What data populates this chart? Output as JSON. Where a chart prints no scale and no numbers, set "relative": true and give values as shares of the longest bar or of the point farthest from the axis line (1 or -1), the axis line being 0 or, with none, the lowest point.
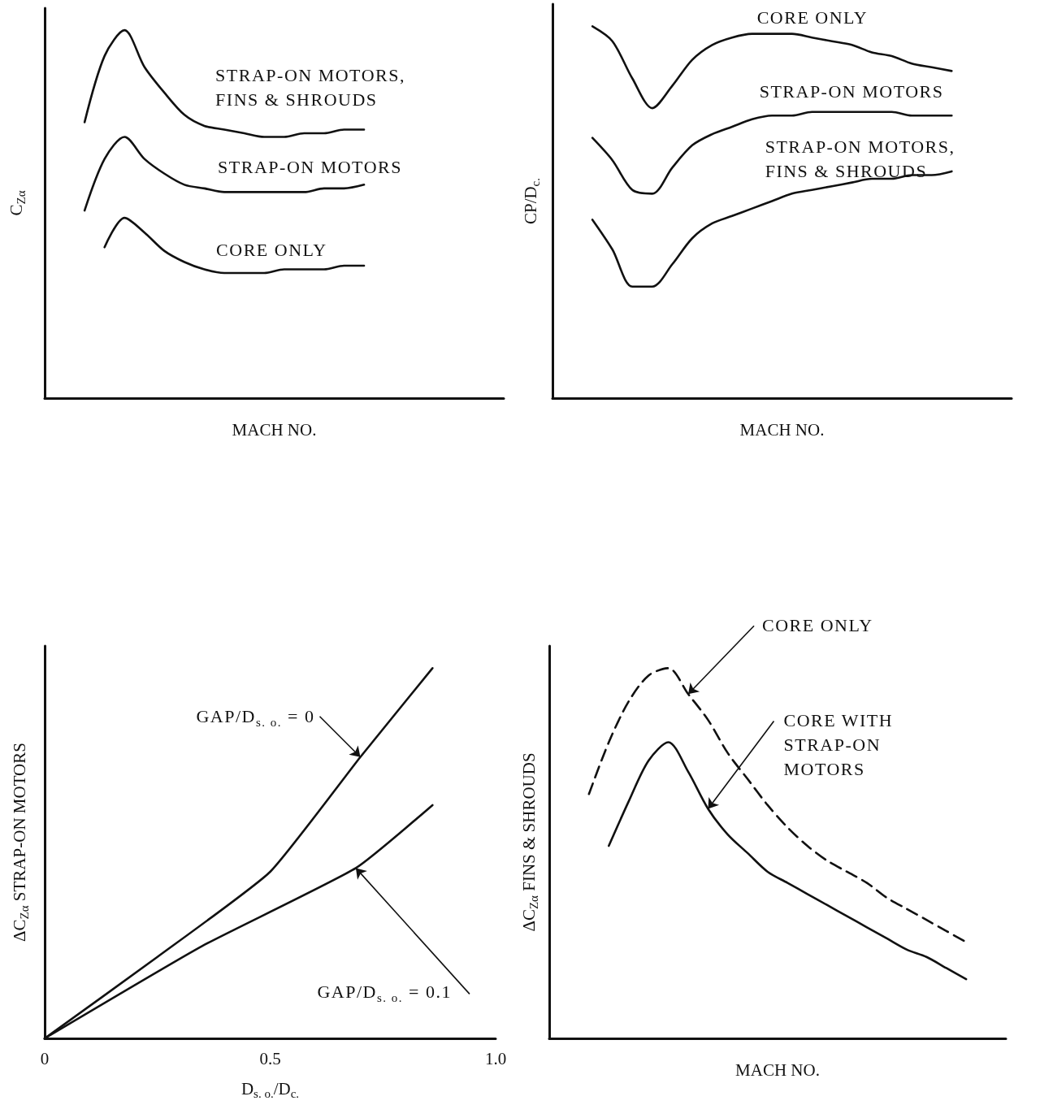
{
  "chart_data": [
    {
      "type": "line",
      "relative": true,
      "xlabel": "MACH NO.",
      "ylabel": "C$_{Zα}$",
      "marker": "none",
      "tick_labels": false,
      "categories": [
        null,
        null,
        null,
        null,
        null,
        null,
        null,
        null,
        null,
        null,
        null,
        null,
        null,
        null,
        null,
        null,
        null,
        null,
        null,
        null,
        null,
        null,
        null,
        null
      ],
      "series": [
        {
          "name": "STRAP-ON MOTORS, FINS & SHROUDS",
          "color": "#111111",
          "values": [
            null,
            null,
            0.75,
            0.93,
            1.0,
            0.9,
            0.83,
            0.77,
            0.74,
            0.73,
            0.72,
            0.71,
            0.71,
            0.72,
            0.72,
            0.73,
            0.73,
            null,
            null,
            null,
            null,
            null,
            null,
            null
          ]
        },
        {
          "name": "STRAP-ON MOTORS",
          "color": "#111111",
          "values": [
            null,
            null,
            0.51,
            0.65,
            0.71,
            0.65,
            0.61,
            0.58,
            0.57,
            0.56,
            0.56,
            0.56,
            0.56,
            0.56,
            0.57,
            0.57,
            0.58,
            null,
            null,
            null,
            null,
            null,
            null,
            null
          ]
        },
        {
          "name": "CORE ONLY",
          "color": "#111111",
          "values": [
            null,
            null,
            null,
            0.41,
            0.49,
            0.45,
            0.4,
            0.37,
            0.35,
            0.34,
            0.34,
            0.34,
            0.35,
            0.35,
            0.35,
            0.36,
            0.36,
            null,
            null,
            null,
            null,
            null,
            null,
            null
          ]
        }
      ]
    },
    {
      "type": "line",
      "relative": true,
      "xlabel": "MACH NO.",
      "ylabel": "CP/D$_{c.}$",
      "marker": "none",
      "tick_labels": false,
      "categories": [
        null,
        null,
        null,
        null,
        null,
        null,
        null,
        null,
        null,
        null,
        null,
        null,
        null,
        null,
        null,
        null,
        null,
        null,
        null,
        null,
        null,
        null,
        null,
        null
      ],
      "series": [
        {
          "name": "CORE ONLY",
          "color": "#111111",
          "values": [
            null,
            null,
            1.0,
            0.96,
            0.86,
            0.78,
            0.84,
            0.91,
            0.95,
            0.97,
            0.98,
            0.98,
            0.98,
            0.97,
            0.96,
            0.95,
            0.93,
            0.92,
            0.9,
            0.89,
            0.88,
            null,
            null,
            null
          ]
        },
        {
          "name": "STRAP-ON MOTORS",
          "color": "#111111",
          "values": [
            null,
            null,
            0.7,
            0.64,
            0.56,
            0.55,
            0.62,
            0.68,
            0.71,
            0.73,
            0.75,
            0.76,
            0.76,
            0.77,
            0.77,
            0.77,
            0.77,
            0.77,
            0.76,
            0.76,
            0.76,
            null,
            null,
            null
          ]
        },
        {
          "name": "STRAP-ON MOTORS, FINS & SHROUDS",
          "color": "#111111",
          "values": [
            null,
            null,
            0.48,
            0.4,
            0.3,
            0.3,
            0.36,
            0.43,
            0.47,
            0.49,
            0.51,
            0.53,
            0.55,
            0.56,
            0.57,
            0.58,
            0.59,
            0.59,
            0.6,
            0.6,
            0.61,
            null,
            null,
            null
          ]
        }
      ]
    },
    {
      "type": "line",
      "relative": true,
      "xlabel": "D$_{s. o.}$/D$_{c.}$",
      "ylabel": "ΔC$_{Zα}$ STRAP-ON MOTORS",
      "marker": "none",
      "tick_labels": "x",
      "xlim": [
        0,
        1
      ],
      "xticks": [
        0,
        0.5,
        {
          "value": 1,
          "label": "1.0"
        }
      ],
      "series": [
        {
          "name": "GAP/D$_{s. o.}$ = 0",
          "color": "#111111",
          "x": [
            0,
            0.25,
            0.5,
            0.7,
            0.86
          ],
          "values": [
            0,
            0.22,
            0.45,
            0.76,
            1.0
          ]
        },
        {
          "name": "GAP/D$_{s. o.}$ = 0.1",
          "color": "#111111",
          "x": [
            0,
            0.35,
            0.69,
            0.86
          ],
          "values": [
            0,
            0.25,
            0.46,
            0.63
          ]
        }
      ]
    },
    {
      "type": "line",
      "relative": true,
      "xlabel": "MACH NO.",
      "ylabel": "ΔC$_{Zα}$ FINS & SHROUDS",
      "marker": "none",
      "tick_labels": false,
      "categories": [
        null,
        null,
        null,
        null,
        null,
        null,
        null,
        null,
        null,
        null,
        null,
        null,
        null,
        null,
        null,
        null,
        null,
        null,
        null,
        null,
        null,
        null,
        null,
        null
      ],
      "series": [
        {
          "name": "CORE ONLY",
          "color": "#111111",
          "line_style": "dashed",
          "values": [
            null,
            null,
            0.66,
            0.8,
            0.91,
            0.98,
            1.0,
            0.93,
            0.86,
            0.77,
            0.7,
            0.63,
            0.57,
            0.52,
            0.48,
            0.45,
            0.42,
            0.38,
            0.35,
            0.32,
            0.29,
            0.26,
            null,
            null
          ]
        },
        {
          "name": "CORE WITH STRAP-ON MOTORS",
          "color": "#111111",
          "line_style": "solid",
          "values": [
            null,
            null,
            null,
            0.52,
            0.64,
            0.75,
            0.8,
            0.72,
            0.62,
            0.55,
            0.5,
            0.45,
            0.42,
            0.39,
            0.36,
            0.33,
            0.3,
            0.27,
            0.24,
            0.22,
            0.19,
            0.16,
            null,
            null
          ]
        }
      ]
    }
  ]
}
